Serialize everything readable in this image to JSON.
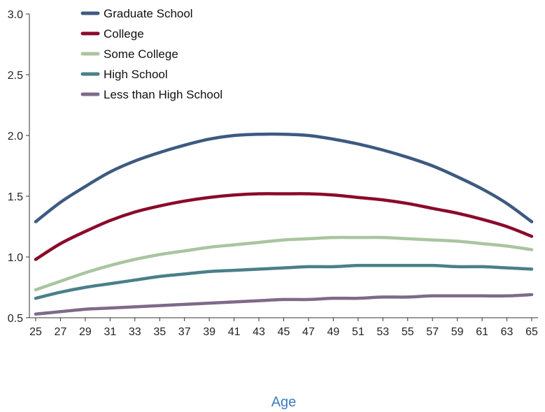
{
  "chart_data": {
    "type": "line",
    "title": "",
    "xlabel": "Age",
    "ylabel": "",
    "xlim": [
      25,
      65
    ],
    "ylim": [
      0.5,
      3.0
    ],
    "x_ticks": [
      25,
      27,
      29,
      31,
      33,
      35,
      37,
      39,
      41,
      43,
      45,
      47,
      49,
      51,
      53,
      55,
      57,
      59,
      61,
      63,
      65
    ],
    "y_ticks": [
      "0.5",
      "1.0",
      "1.5",
      "2.0",
      "2.5",
      "3.0"
    ],
    "grid": false,
    "legend_position": "top-left",
    "x": [
      25,
      27,
      29,
      31,
      33,
      35,
      37,
      39,
      41,
      43,
      45,
      47,
      49,
      51,
      53,
      55,
      57,
      59,
      61,
      63,
      65
    ],
    "series": [
      {
        "name": "Graduate School",
        "color": "#3d5a80",
        "values": [
          1.29,
          1.45,
          1.58,
          1.7,
          1.79,
          1.86,
          1.92,
          1.97,
          2.0,
          2.01,
          2.01,
          2.0,
          1.97,
          1.93,
          1.88,
          1.82,
          1.75,
          1.66,
          1.56,
          1.44,
          1.29
        ]
      },
      {
        "name": "College",
        "color": "#8b0a2a",
        "values": [
          0.98,
          1.11,
          1.21,
          1.3,
          1.37,
          1.42,
          1.46,
          1.49,
          1.51,
          1.52,
          1.52,
          1.52,
          1.51,
          1.49,
          1.47,
          1.44,
          1.4,
          1.36,
          1.31,
          1.25,
          1.17
        ]
      },
      {
        "name": "Some College",
        "color": "#a9c5a0",
        "values": [
          0.73,
          0.8,
          0.87,
          0.93,
          0.98,
          1.02,
          1.05,
          1.08,
          1.1,
          1.12,
          1.14,
          1.15,
          1.16,
          1.16,
          1.16,
          1.15,
          1.14,
          1.13,
          1.11,
          1.09,
          1.06
        ]
      },
      {
        "name": "High School",
        "color": "#4a7f89",
        "values": [
          0.66,
          0.71,
          0.75,
          0.78,
          0.81,
          0.84,
          0.86,
          0.88,
          0.89,
          0.9,
          0.91,
          0.92,
          0.92,
          0.93,
          0.93,
          0.93,
          0.93,
          0.92,
          0.92,
          0.91,
          0.9
        ]
      },
      {
        "name": "Less than High School",
        "color": "#7e6a8a",
        "values": [
          0.53,
          0.55,
          0.57,
          0.58,
          0.59,
          0.6,
          0.61,
          0.62,
          0.63,
          0.64,
          0.65,
          0.65,
          0.66,
          0.66,
          0.67,
          0.67,
          0.68,
          0.68,
          0.68,
          0.68,
          0.69
        ]
      }
    ]
  }
}
